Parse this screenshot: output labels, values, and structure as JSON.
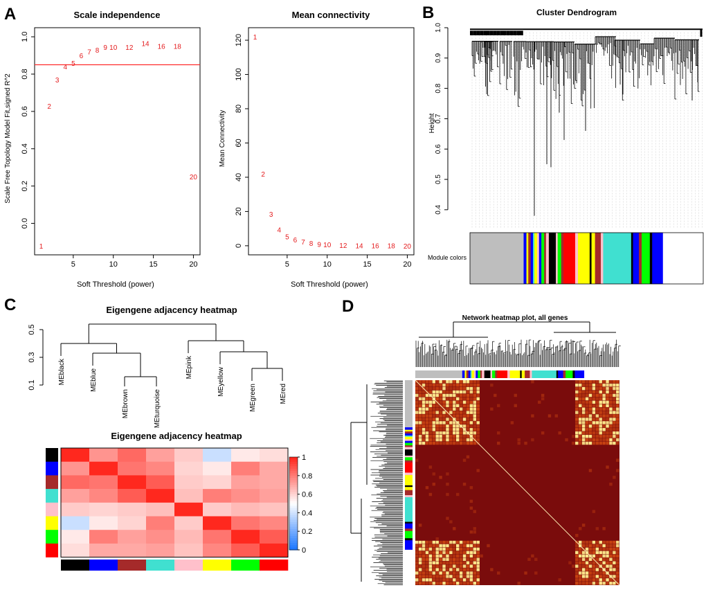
{
  "panel_labels": {
    "a": "A",
    "b": "B",
    "c": "C",
    "d": "D"
  },
  "colors": {
    "point_text": "#e41a1c",
    "threshold_line": "#ff2a2a",
    "module_grey": "#bebebe",
    "heat_dark": "#7a0c0c",
    "heat_mid": "#d24a12",
    "heat_light": "#fde68a"
  },
  "module_color_names": [
    "black",
    "blue",
    "brown",
    "turquoise",
    "pink",
    "yellow",
    "green",
    "red"
  ],
  "module_color_hex": [
    "#000000",
    "#0000ff",
    "#a52a2a",
    "#40e0d0",
    "#ffc0cb",
    "#ffff00",
    "#00ff00",
    "#ff0000"
  ],
  "chart_data": [
    {
      "id": "scale_independence",
      "type": "scatter",
      "title": "Scale independence",
      "xlabel": "Soft Threshold (power)",
      "ylabel": "Scale Free Topology Model Fit,signed R^2",
      "xlim": [
        1,
        20
      ],
      "ylim": [
        -0.12,
        1.0
      ],
      "xticks": [
        5,
        10,
        15,
        20
      ],
      "yticks": [
        0.0,
        0.2,
        0.4,
        0.6,
        0.8,
        1.0
      ],
      "ytick_labels": [
        "0.0",
        "0.2",
        "0.4",
        "0.6",
        "0.8",
        "1.0"
      ],
      "hline": 0.85,
      "points": [
        {
          "label": "1",
          "x": 1,
          "y": -0.12
        },
        {
          "label": "2",
          "x": 2,
          "y": 0.63
        },
        {
          "label": "3",
          "x": 3,
          "y": 0.77
        },
        {
          "label": "4",
          "x": 4,
          "y": 0.84
        },
        {
          "label": "5",
          "x": 5,
          "y": 0.86
        },
        {
          "label": "6",
          "x": 6,
          "y": 0.9
        },
        {
          "label": "7",
          "x": 7,
          "y": 0.92
        },
        {
          "label": "8",
          "x": 8,
          "y": 0.93
        },
        {
          "label": "9",
          "x": 9,
          "y": 0.945
        },
        {
          "label": "10",
          "x": 10,
          "y": 0.945
        },
        {
          "label": "12",
          "x": 12,
          "y": 0.945
        },
        {
          "label": "14",
          "x": 14,
          "y": 0.965
        },
        {
          "label": "16",
          "x": 16,
          "y": 0.95
        },
        {
          "label": "18",
          "x": 18,
          "y": 0.95
        },
        {
          "label": "20",
          "x": 20,
          "y": 0.25
        }
      ]
    },
    {
      "id": "mean_connectivity",
      "type": "scatter",
      "title": "Mean connectivity",
      "xlabel": "Soft Threshold (power)",
      "ylabel": "Mean Connectivity",
      "xlim": [
        1,
        20
      ],
      "ylim": [
        0,
        122
      ],
      "xticks": [
        5,
        10,
        15,
        20
      ],
      "yticks": [
        0,
        20,
        40,
        60,
        80,
        100,
        120
      ],
      "ytick_labels": [
        "0",
        "20",
        "40",
        "60",
        "80",
        "100",
        "120"
      ],
      "points": [
        {
          "label": "1",
          "x": 1,
          "y": 122
        },
        {
          "label": "2",
          "x": 2,
          "y": 42
        },
        {
          "label": "3",
          "x": 3,
          "y": 18.5
        },
        {
          "label": "4",
          "x": 4,
          "y": 9.5
        },
        {
          "label": "5",
          "x": 5,
          "y": 5.5
        },
        {
          "label": "6",
          "x": 6,
          "y": 3.5
        },
        {
          "label": "7",
          "x": 7,
          "y": 2.3
        },
        {
          "label": "8",
          "x": 8,
          "y": 1.5
        },
        {
          "label": "9",
          "x": 9,
          "y": 1.0
        },
        {
          "label": "10",
          "x": 10,
          "y": 0.7
        },
        {
          "label": "12",
          "x": 12,
          "y": 0.4
        },
        {
          "label": "14",
          "x": 14,
          "y": 0.2
        },
        {
          "label": "16",
          "x": 16,
          "y": 0.1
        },
        {
          "label": "18",
          "x": 18,
          "y": 0.07
        },
        {
          "label": "20",
          "x": 20,
          "y": 0.05
        }
      ]
    },
    {
      "id": "cluster_dendrogram",
      "type": "dendrogram",
      "title": "Cluster Dendrogram",
      "ylabel": "Height",
      "ylim": [
        0.37,
        1.0
      ],
      "yticks": [
        0.4,
        0.5,
        0.6,
        0.7,
        0.8,
        0.9,
        1.0
      ],
      "ytick_labels": [
        "0.4",
        "0.5",
        "0.6",
        "0.7",
        "0.8",
        "0.9",
        "1.0"
      ],
      "color_bar_label": "Module colors",
      "module_segments": [
        {
          "color": "#bebebe",
          "frac": 0.23
        },
        {
          "color": "#0000ff",
          "frac": 0.012
        },
        {
          "color": "#ffff00",
          "frac": 0.008
        },
        {
          "color": "#a52a2a",
          "frac": 0.01
        },
        {
          "color": "#0000ff",
          "frac": 0.01
        },
        {
          "color": "#40e0d0",
          "frac": 0.006
        },
        {
          "color": "#ffff00",
          "frac": 0.012
        },
        {
          "color": "#ffc0cb",
          "frac": 0.008
        },
        {
          "color": "#0000ff",
          "frac": 0.01
        },
        {
          "color": "#00ff00",
          "frac": 0.012
        },
        {
          "color": "#a52a2a",
          "frac": 0.008
        },
        {
          "color": "#ffc0cb",
          "frac": 0.012
        },
        {
          "color": "#000000",
          "frac": 0.03
        },
        {
          "color": "#ffc0cb",
          "frac": 0.008
        },
        {
          "color": "#00ff00",
          "frac": 0.015
        },
        {
          "color": "#a52a2a",
          "frac": 0.01
        },
        {
          "color": "#ff0000",
          "frac": 0.05
        },
        {
          "color": "#ffc0cb",
          "frac": 0.012
        },
        {
          "color": "#ffff00",
          "frac": 0.05
        },
        {
          "color": "#000000",
          "frac": 0.008
        },
        {
          "color": "#ffff00",
          "frac": 0.015
        },
        {
          "color": "#a52a2a",
          "frac": 0.025
        },
        {
          "color": "#ffc0cb",
          "frac": 0.01
        },
        {
          "color": "#40e0d0",
          "frac": 0.12
        },
        {
          "color": "#000000",
          "frac": 0.008
        },
        {
          "color": "#0000ff",
          "frac": 0.025
        },
        {
          "color": "#a52a2a",
          "frac": 0.012
        },
        {
          "color": "#00ff00",
          "frac": 0.035
        },
        {
          "color": "#000000",
          "frac": 0.01
        },
        {
          "color": "#0000ff",
          "frac": 0.045
        }
      ]
    },
    {
      "id": "eigengene_dendrogram",
      "type": "dendrogram",
      "title": "Eigengene adjacency heatmap",
      "ylim": [
        0.1,
        0.58
      ],
      "yticks": [
        0.1,
        0.3,
        0.5
      ],
      "ytick_labels": [
        "0.1",
        "0.3",
        "0.5"
      ],
      "leaves": [
        "MEblack",
        "MEblue",
        "MEbrown",
        "MEturquoise",
        "MEpink",
        "MEyellow",
        "MEgreen",
        "MEred"
      ],
      "merges": [
        {
          "a": "MEbrown",
          "b": "MEturquoise",
          "height": 0.16
        },
        {
          "a": "MEgreen",
          "b": "MEred",
          "height": 0.22
        },
        {
          "a": "MEblue",
          "b": "MEbrown+MEturquoise",
          "height": 0.33
        },
        {
          "a": "MEyellow",
          "b": "MEgreen+MEred",
          "height": 0.34
        },
        {
          "a": "MEblack",
          "b": "MEblue+MEbrown+MEturquoise",
          "height": 0.4
        },
        {
          "a": "MEpink",
          "b": "MEyellow+MEgreen+MEred",
          "height": 0.42
        },
        {
          "a": "left",
          "b": "right",
          "height": 0.54
        }
      ]
    },
    {
      "id": "eigengene_heatmap",
      "type": "heatmap",
      "title": "Eigengene adjacency heatmap",
      "rows": [
        "black",
        "blue",
        "brown",
        "turquoise",
        "pink",
        "yellow",
        "green",
        "red"
      ],
      "cols": [
        "black",
        "blue",
        "brown",
        "turquoise",
        "pink",
        "yellow",
        "green",
        "red"
      ],
      "legend_ticks": [
        0,
        0.2,
        0.4,
        0.6,
        0.8,
        1
      ],
      "legend_tick_labels": [
        "0",
        "0.2",
        "0.4",
        "0.6",
        "0.8",
        "1"
      ],
      "values": [
        [
          1.0,
          0.75,
          0.85,
          0.72,
          0.62,
          0.38,
          0.55,
          0.58
        ],
        [
          0.75,
          1.0,
          0.82,
          0.78,
          0.6,
          0.55,
          0.8,
          0.7
        ],
        [
          0.85,
          0.82,
          1.0,
          0.88,
          0.62,
          0.6,
          0.72,
          0.7
        ],
        [
          0.72,
          0.78,
          0.88,
          1.0,
          0.65,
          0.8,
          0.76,
          0.72
        ],
        [
          0.62,
          0.6,
          0.62,
          0.65,
          1.0,
          0.62,
          0.66,
          0.64
        ],
        [
          0.38,
          0.55,
          0.6,
          0.8,
          0.62,
          1.0,
          0.82,
          0.78
        ],
        [
          0.55,
          0.8,
          0.72,
          0.76,
          0.66,
          0.82,
          1.0,
          0.88
        ],
        [
          0.58,
          0.7,
          0.7,
          0.72,
          0.64,
          0.78,
          0.88,
          1.0
        ]
      ]
    },
    {
      "id": "network_heatmap",
      "type": "heatmap",
      "title": "Network heatmap plot, all genes"
    }
  ]
}
